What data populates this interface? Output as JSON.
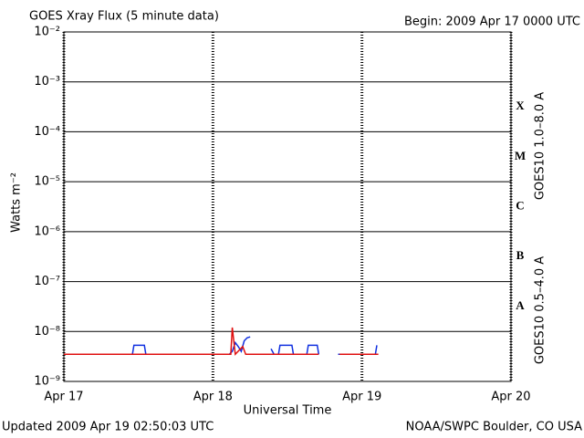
{
  "chart_data": {
    "type": "line",
    "title": "GOES Xray Flux (5 minute data)",
    "begin_label": "Begin:  2009 Apr 17 0000 UTC",
    "updated_label": "Updated 2009 Apr 19 02:50:03 UTC",
    "credit": "NOAA/SWPC Boulder, CO USA",
    "x_label": "Universal Time",
    "y_label": "Watts m⁻²",
    "log_y": true,
    "grid": true,
    "xlim": [
      0,
      3
    ],
    "xticks": [
      {
        "value": 0,
        "label": "Apr 17"
      },
      {
        "value": 1,
        "label": "Apr 18"
      },
      {
        "value": 2,
        "label": "Apr 19"
      },
      {
        "value": 3,
        "label": "Apr 20"
      }
    ],
    "ylim": [
      1e-09,
      0.01
    ],
    "yticks": [
      {
        "value": 1e-09,
        "label": "10⁻⁹"
      },
      {
        "value": 1e-08,
        "label": "10⁻⁸"
      },
      {
        "value": 1e-07,
        "label": "10⁻⁷"
      },
      {
        "value": 1e-06,
        "label": "10⁻⁶"
      },
      {
        "value": 1e-05,
        "label": "10⁻⁵"
      },
      {
        "value": 0.0001,
        "label": "10⁻⁴"
      },
      {
        "value": 0.001,
        "label": "10⁻³"
      },
      {
        "value": 0.01,
        "label": "10⁻²"
      }
    ],
    "flare_classes": [
      {
        "label": "X",
        "value": 0.0001
      },
      {
        "label": "M",
        "value": 1e-05
      },
      {
        "label": "C",
        "value": 1e-06
      },
      {
        "label": "B",
        "value": 1e-07
      },
      {
        "label": "A",
        "value": 1e-08
      }
    ],
    "series": [
      {
        "name": "GOES10 0.5–4.0 A",
        "color": "#1030e0",
        "x": [
          0,
          0.46,
          0.47,
          0.54,
          0.55,
          1.11,
          1.13,
          1.15,
          1.17,
          1.19,
          1.21,
          1.23,
          1.25,
          1.3,
          1.39,
          1.41,
          1.44,
          1.45,
          1.53,
          1.54,
          1.63,
          1.64,
          1.7,
          1.71,
          1.78,
          1.84,
          2.09,
          2.1
        ],
        "values": [
          3.5e-09,
          3.5e-09,
          5.3e-09,
          5.3e-09,
          3.5e-09,
          3.5e-09,
          4e-09,
          6e-09,
          5e-09,
          4e-09,
          6.5e-09,
          7.5e-09,
          7.8e-09,
          null,
          4.5e-09,
          3.5e-09,
          3.5e-09,
          5.3e-09,
          5.3e-09,
          3.5e-09,
          3.5e-09,
          5.3e-09,
          5.3e-09,
          3.5e-09,
          null,
          3.5e-09,
          3.5e-09,
          5.3e-09
        ]
      },
      {
        "name": "GOES10 1.0–8.0 A",
        "color": "#e01010",
        "x": [
          0,
          1.12,
          1.13,
          1.15,
          1.2,
          1.22,
          1.71,
          1.78,
          1.85,
          2.11
        ],
        "values": [
          3.5e-09,
          3.5e-09,
          1.2e-08,
          3.5e-09,
          5e-09,
          3.5e-09,
          3.5e-09,
          null,
          3.5e-09,
          3.5e-09
        ]
      }
    ]
  }
}
